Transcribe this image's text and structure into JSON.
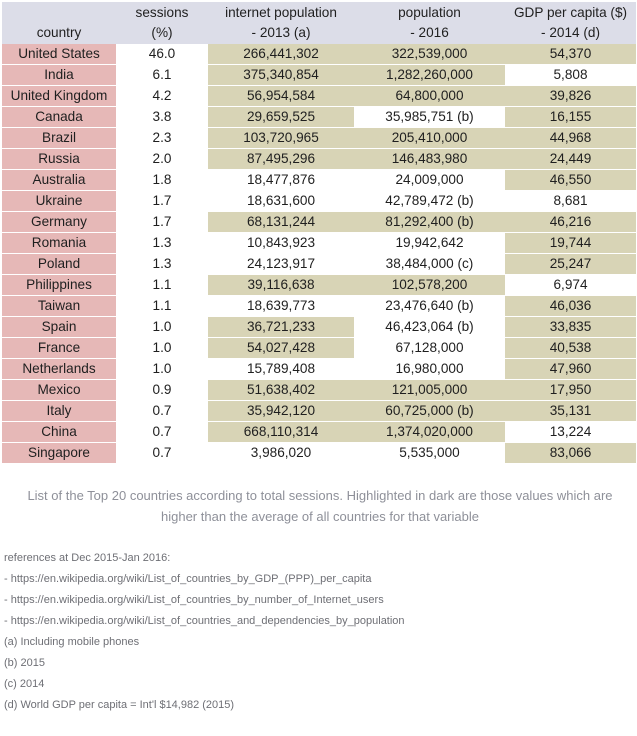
{
  "headers": {
    "country": "country",
    "sessions": [
      "sessions",
      "(%)"
    ],
    "internet": [
      "internet population",
      "- 2013 (a)"
    ],
    "population": [
      "population",
      "- 2016"
    ],
    "gdp": [
      "GDP per capita ($)",
      "- 2014 (d)"
    ]
  },
  "highlight_colors": {
    "country": "#e6b8b7",
    "above_average": "#d8d4b6",
    "header": "#dcdde8"
  },
  "rows": [
    {
      "country": "United States",
      "sessions": "46.0",
      "internet": "266,441,302",
      "population": "322,539,000",
      "gdp": "54,370",
      "hi": [
        false,
        true,
        true,
        true
      ]
    },
    {
      "country": "India",
      "sessions": "6.1",
      "internet": "375,340,854",
      "population": "1,282,260,000",
      "gdp": "5,808",
      "hi": [
        false,
        true,
        true,
        false
      ]
    },
    {
      "country": "United Kingdom",
      "sessions": "4.2",
      "internet": "56,954,584",
      "population": "64,800,000",
      "gdp": "39,826",
      "hi": [
        false,
        true,
        true,
        true
      ]
    },
    {
      "country": "Canada",
      "sessions": "3.8",
      "internet": "29,659,525",
      "population": "35,985,751 (b)",
      "gdp": "16,155",
      "hi": [
        false,
        true,
        false,
        true
      ]
    },
    {
      "country": "Brazil",
      "sessions": "2.3",
      "internet": "103,720,965",
      "population": "205,410,000",
      "gdp": "44,968",
      "hi": [
        false,
        true,
        true,
        true
      ]
    },
    {
      "country": "Russia",
      "sessions": "2.0",
      "internet": "87,495,296",
      "population": "146,483,980",
      "gdp": "24,449",
      "hi": [
        false,
        true,
        true,
        true
      ]
    },
    {
      "country": "Australia",
      "sessions": "1.8",
      "internet": "18,477,876",
      "population": "24,009,000",
      "gdp": "46,550",
      "hi": [
        false,
        false,
        false,
        true
      ]
    },
    {
      "country": "Ukraine",
      "sessions": "1.7",
      "internet": "18,631,600",
      "population": "42,789,472 (b)",
      "gdp": "8,681",
      "hi": [
        false,
        false,
        false,
        false
      ]
    },
    {
      "country": "Germany",
      "sessions": "1.7",
      "internet": "68,131,244",
      "population": "81,292,400 (b)",
      "gdp": "46,216",
      "hi": [
        false,
        true,
        true,
        true
      ]
    },
    {
      "country": "Romania",
      "sessions": "1.3",
      "internet": "10,843,923",
      "population": "19,942,642",
      "gdp": "19,744",
      "hi": [
        false,
        false,
        false,
        true
      ]
    },
    {
      "country": "Poland",
      "sessions": "1.3",
      "internet": "24,123,917",
      "population": "38,484,000 (c)",
      "gdp": "25,247",
      "hi": [
        false,
        false,
        false,
        true
      ]
    },
    {
      "country": "Philippines",
      "sessions": "1.1",
      "internet": "39,116,638",
      "population": "102,578,200",
      "gdp": "6,974",
      "hi": [
        false,
        true,
        true,
        false
      ]
    },
    {
      "country": "Taiwan",
      "sessions": "1.1",
      "internet": "18,639,773",
      "population": "23,476,640 (b)",
      "gdp": "46,036",
      "hi": [
        false,
        false,
        false,
        true
      ]
    },
    {
      "country": "Spain",
      "sessions": "1.0",
      "internet": "36,721,233",
      "population": "46,423,064 (b)",
      "gdp": "33,835",
      "hi": [
        false,
        true,
        false,
        true
      ]
    },
    {
      "country": "France",
      "sessions": "1.0",
      "internet": "54,027,428",
      "population": "67,128,000",
      "gdp": "40,538",
      "hi": [
        false,
        true,
        false,
        true
      ]
    },
    {
      "country": "Netherlands",
      "sessions": "1.0",
      "internet": "15,789,408",
      "population": "16,980,000",
      "gdp": "47,960",
      "hi": [
        false,
        false,
        false,
        true
      ]
    },
    {
      "country": "Mexico",
      "sessions": "0.9",
      "internet": "51,638,402",
      "population": "121,005,000",
      "gdp": "17,950",
      "hi": [
        false,
        true,
        true,
        true
      ]
    },
    {
      "country": "Italy",
      "sessions": "0.7",
      "internet": "35,942,120",
      "population": "60,725,000 (b)",
      "gdp": "35,131",
      "hi": [
        false,
        true,
        true,
        true
      ]
    },
    {
      "country": "China",
      "sessions": "0.7",
      "internet": "668,110,314",
      "population": "1,374,020,000",
      "gdp": "13,224",
      "hi": [
        false,
        true,
        true,
        false
      ]
    },
    {
      "country": "Singapore",
      "sessions": "0.7",
      "internet": "3,986,020",
      "population": "5,535,000",
      "gdp": "83,066",
      "hi": [
        false,
        false,
        false,
        true
      ]
    }
  ],
  "caption": [
    "List of the Top 20 countries according to total sessions. Highlighted in dark are those values which are",
    "higher than the average of all countries for that variable"
  ],
  "references": [
    "references at Dec 2015-Jan 2016:",
    "- https://en.wikipedia.org/wiki/List_of_countries_by_GDP_(PPP)_per_capita",
    "- https://en.wikipedia.org/wiki/List_of_countries_by_number_of_Internet_users",
    "- https://en.wikipedia.org/wiki/List_of_countries_and_dependencies_by_population",
    "(a) Including mobile phones",
    "(b) 2015",
    "(c) 2014",
    "(d) World GDP per capita = Int'l $14,982 (2015)"
  ]
}
